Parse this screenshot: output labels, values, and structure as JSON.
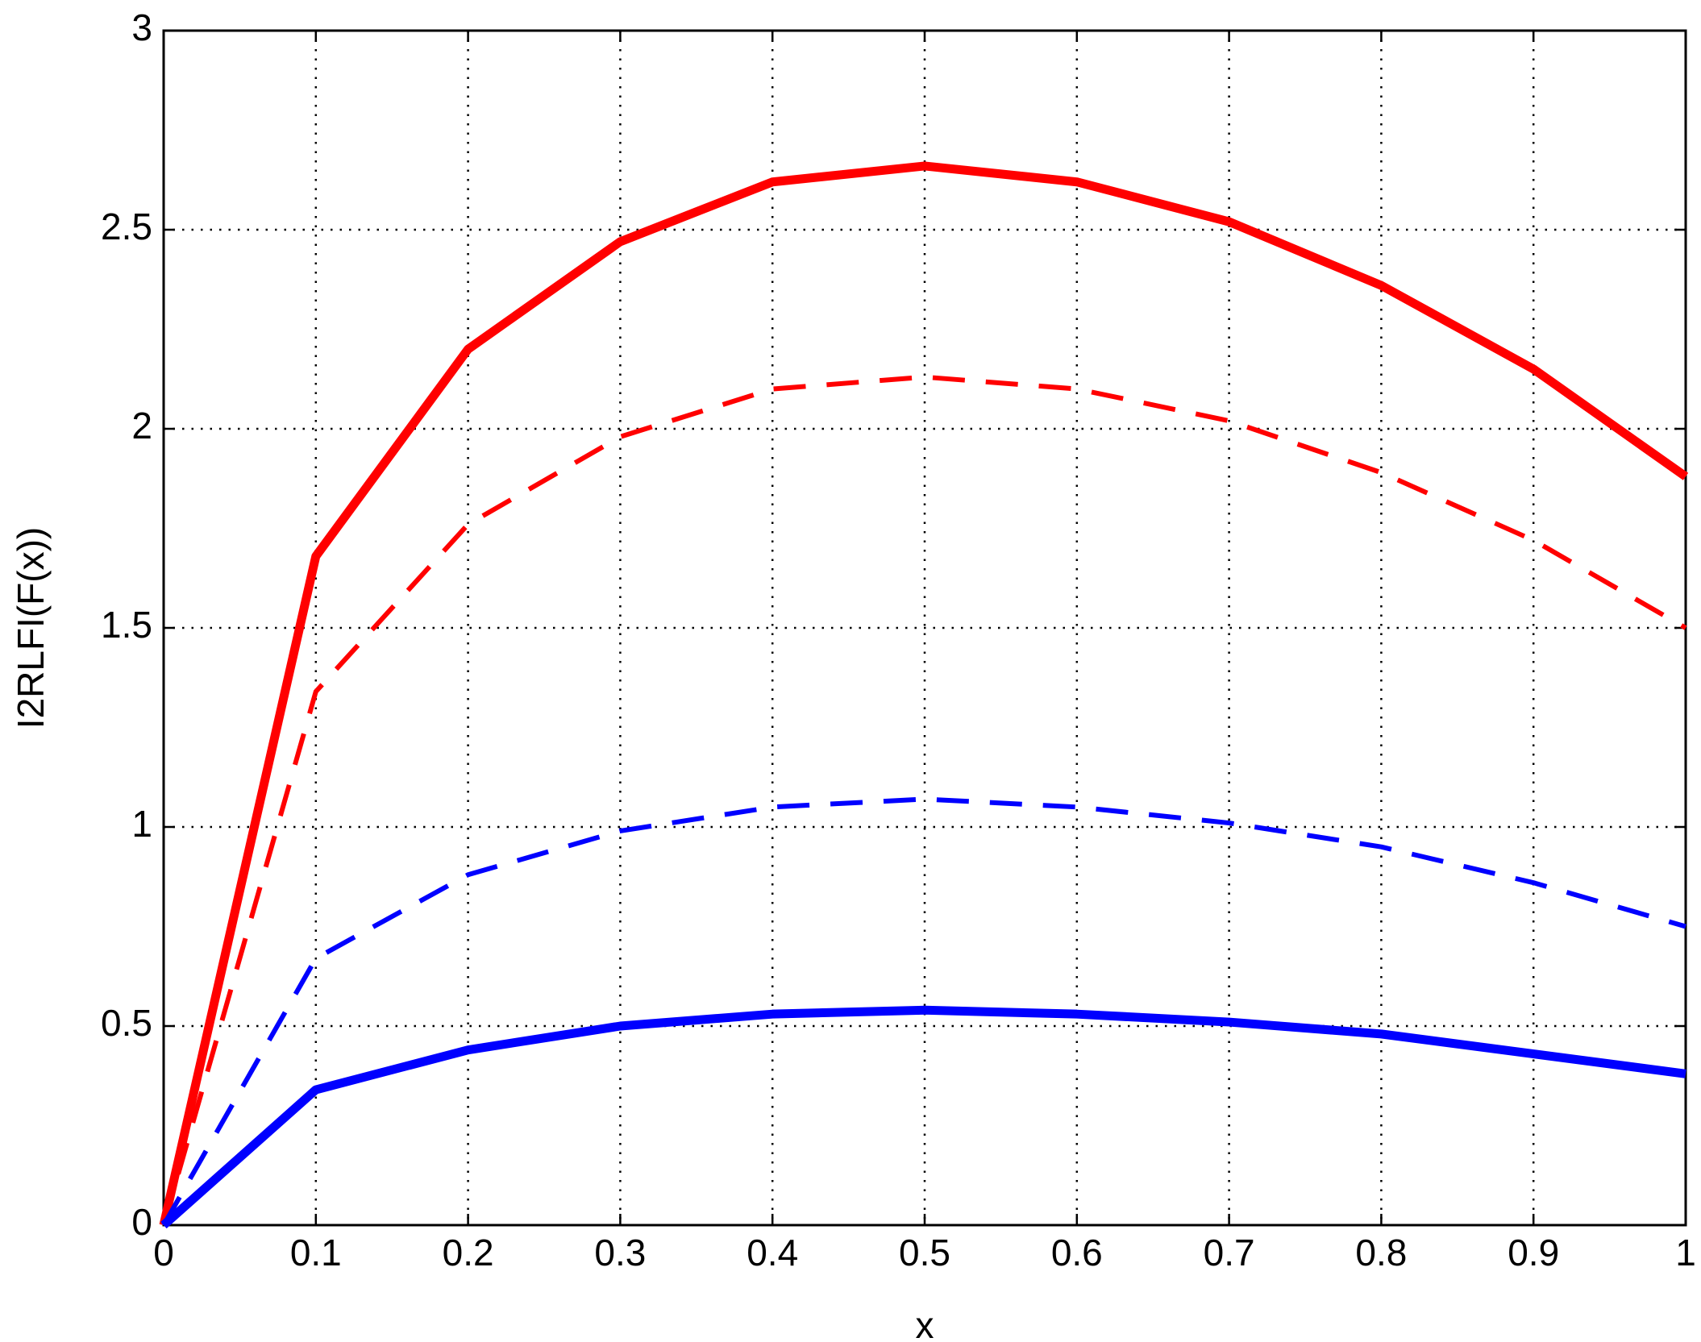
{
  "chart_data": {
    "type": "line",
    "xlabel": "x",
    "ylabel": "I2RLFI(F(x))",
    "x": [
      0,
      0.1,
      0.2,
      0.3,
      0.4,
      0.5,
      0.6,
      0.7,
      0.8,
      0.9,
      1
    ],
    "series": [
      {
        "color": "#ff0000",
        "style": "solid",
        "width": 11,
        "values": [
          0,
          1.68,
          2.2,
          2.47,
          2.62,
          2.66,
          2.62,
          2.52,
          2.36,
          2.15,
          1.88
        ]
      },
      {
        "color": "#ff0000",
        "style": "dashed",
        "width": 6,
        "values": [
          0,
          1.34,
          1.76,
          1.98,
          2.1,
          2.13,
          2.1,
          2.02,
          1.89,
          1.72,
          1.5
        ]
      },
      {
        "color": "#0000ff",
        "style": "dashed",
        "width": 6,
        "values": [
          0,
          0.67,
          0.88,
          0.99,
          1.05,
          1.07,
          1.05,
          1.01,
          0.95,
          0.86,
          0.75
        ]
      },
      {
        "color": "#0000ff",
        "style": "solid",
        "width": 11,
        "values": [
          0,
          0.34,
          0.44,
          0.5,
          0.53,
          0.54,
          0.53,
          0.51,
          0.48,
          0.43,
          0.38
        ]
      }
    ],
    "xlim": [
      0,
      1
    ],
    "xticks": [
      0,
      0.1,
      0.2,
      0.3,
      0.4,
      0.5,
      0.6,
      0.7,
      0.8,
      0.9,
      1
    ],
    "ylim": [
      0,
      3
    ],
    "yticks": [
      0,
      0.5,
      1,
      1.5,
      2,
      2.5,
      3
    ],
    "grid": true
  }
}
